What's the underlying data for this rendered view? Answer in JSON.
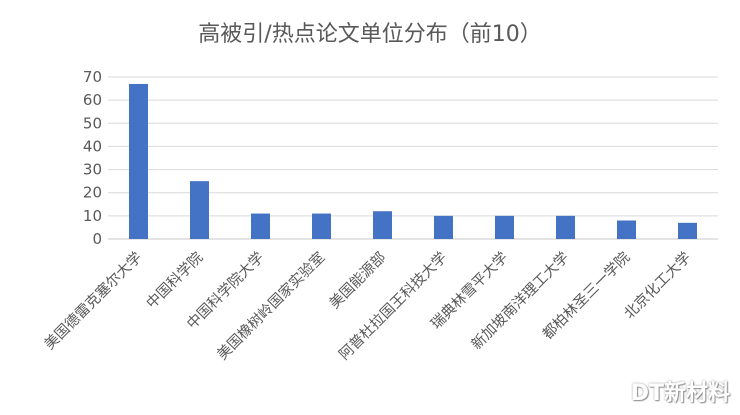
{
  "watermark": "DT新材料",
  "chart_data": {
    "type": "bar",
    "title": "高被引/热点论文单位分布（前10）",
    "xlabel": "",
    "ylabel": "",
    "ylim": [
      0,
      70
    ],
    "yticks": [
      0,
      10,
      20,
      30,
      40,
      50,
      60,
      70
    ],
    "grid": true,
    "legend": "none",
    "bar_color": "#4472C4",
    "categories": [
      "美国德雷克塞尔大学",
      "中国科学院",
      "中国科学院大学",
      "美国橡树岭国家实验室",
      "美国能源部",
      "阿普杜拉国王科技大学",
      "瑞典林雪平大学",
      "新加坡南洋理工大学",
      "都柏林圣三一学院",
      "北京化工大学"
    ],
    "values": [
      67,
      25,
      11,
      11,
      12,
      10,
      10,
      10,
      8,
      7
    ]
  }
}
